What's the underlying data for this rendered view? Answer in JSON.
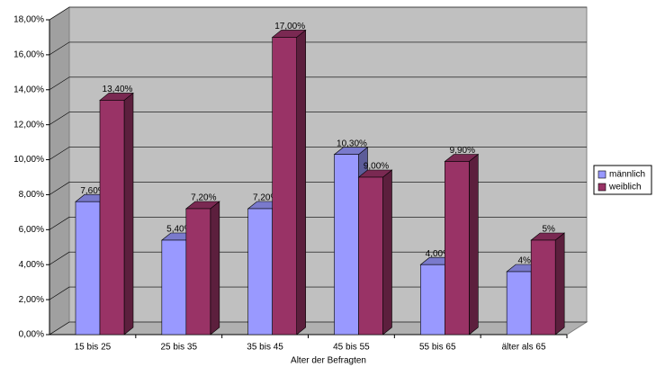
{
  "chart_data": {
    "type": "bar3d",
    "x_label": "Alter der Befragten",
    "categories": [
      "15 bis 25",
      "25 bis 35",
      "35 bis 45",
      "45 bis 55",
      "55 bis 65",
      "älter als 65"
    ],
    "series": [
      {
        "name": "männlich",
        "color": "#9999ff",
        "values": [
          7.6,
          5.4,
          7.2,
          10.3,
          4.0,
          3.6
        ],
        "value_labels": [
          "7,60%",
          "5,40%",
          "7,20%",
          "10,30%",
          "4,00%",
          "4%"
        ]
      },
      {
        "name": "weiblich",
        "color": "#993366",
        "values": [
          13.4,
          7.2,
          17.0,
          9.0,
          9.9,
          5.4
        ],
        "value_labels": [
          "13,40%",
          "7,20%",
          "17,00%",
          "9,00%",
          "9,90%",
          "5%"
        ]
      }
    ],
    "ylim": [
      0,
      18
    ],
    "yticks": [
      {
        "value": 0,
        "label": "0,00%"
      },
      {
        "value": 2,
        "label": "2,00%"
      },
      {
        "value": 4,
        "label": "4,00%"
      },
      {
        "value": 6,
        "label": "6,00%"
      },
      {
        "value": 8,
        "label": "8,00%"
      },
      {
        "value": 10,
        "label": "10,00%"
      },
      {
        "value": 12,
        "label": "12,00%"
      },
      {
        "value": 14,
        "label": "14,00%"
      },
      {
        "value": 16,
        "label": "16,00%"
      },
      {
        "value": 18,
        "label": "18,00%"
      }
    ],
    "grid": true,
    "legend": "right"
  }
}
